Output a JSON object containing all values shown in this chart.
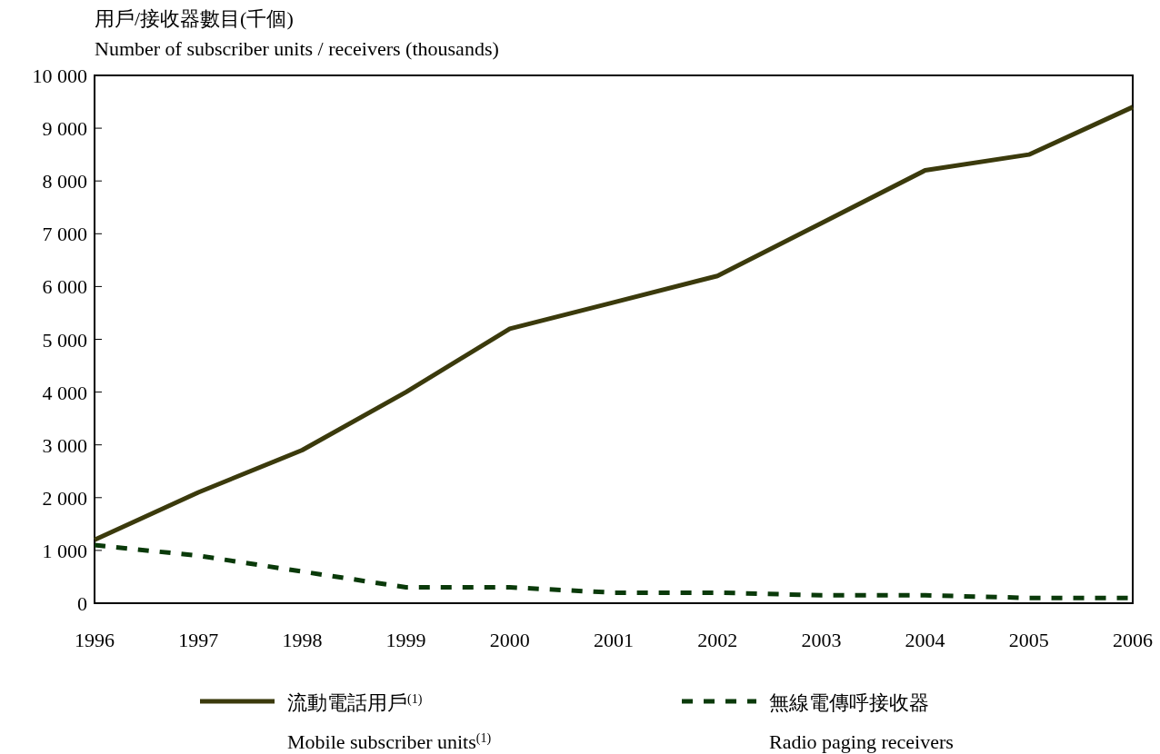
{
  "chart_data": {
    "type": "line",
    "ylabel": "用戶/接收器數目(千個)\nNumber of subscriber units / receivers (thousands)",
    "x": [
      1996,
      1997,
      1998,
      1999,
      2000,
      2001,
      2002,
      2003,
      2004,
      2005,
      2006
    ],
    "series": [
      {
        "name": "流動電話用戶$^{(1)}$\nMobile subscriber units$^{(1)}$",
        "color": "#3b3a0c",
        "line_style": "solid",
        "values": [
          1200,
          2100,
          2900,
          4000,
          5200,
          5700,
          6200,
          7200,
          8200,
          8500,
          9400
        ]
      },
      {
        "name": "無線電傳呼接收器\nRadio paging receivers",
        "color": "#0a3a0a",
        "line_style": "dashed",
        "values": [
          1100,
          900,
          600,
          300,
          300,
          200,
          200,
          150,
          150,
          100,
          100
        ]
      }
    ],
    "xlim": [
      1996,
      2006
    ],
    "xticks": [
      1996,
      1997,
      1998,
      1999,
      2000,
      2001,
      2002,
      2003,
      2004,
      2005,
      2006
    ],
    "ylim": [
      0,
      10000
    ],
    "yticks": [
      {
        "value": 0,
        "label": "0"
      },
      {
        "value": 1000,
        "label": "1 000"
      },
      {
        "value": 2000,
        "label": "2 000"
      },
      {
        "value": 3000,
        "label": "3 000"
      },
      {
        "value": 4000,
        "label": "4 000"
      },
      {
        "value": 5000,
        "label": "5 000"
      },
      {
        "value": 6000,
        "label": "6 000"
      },
      {
        "value": 7000,
        "label": "7 000"
      },
      {
        "value": 8000,
        "label": "8 000"
      },
      {
        "value": 9000,
        "label": "9 000"
      },
      {
        "value": 10000,
        "label": "10 000"
      }
    ],
    "grid": false,
    "legend": "bottom"
  }
}
